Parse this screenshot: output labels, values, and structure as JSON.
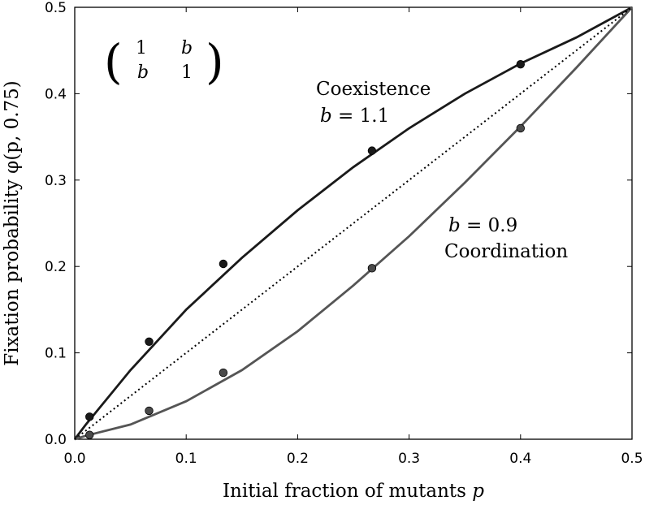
{
  "chart_data": {
    "type": "line",
    "xlabel": "Initial fraction of mutants",
    "xlabel_var": "p",
    "ylabel": "Fixation probability φ(p, 0.75)",
    "xlim": [
      0.0,
      0.5
    ],
    "ylim": [
      0.0,
      0.5
    ],
    "xticks": [
      "0.0",
      "0.1",
      "0.2",
      "0.3",
      "0.4",
      "0.5"
    ],
    "yticks": [
      "0.0",
      "0.1",
      "0.2",
      "0.3",
      "0.4",
      "0.5"
    ],
    "grid": false,
    "series": [
      {
        "style": "solid",
        "color": "#1a1a1a",
        "x": [
          0,
          0.01,
          0.05,
          0.1,
          0.15,
          0.2,
          0.25,
          0.3,
          0.35,
          0.4,
          0.45,
          0.5
        ],
        "y": [
          0,
          0.017,
          0.08,
          0.15,
          0.21,
          0.265,
          0.315,
          0.36,
          0.4,
          0.435,
          0.465,
          0.5
        ]
      },
      {
        "style": "solid",
        "color": "#555555",
        "x": [
          0,
          0.01,
          0.05,
          0.1,
          0.15,
          0.2,
          0.25,
          0.3,
          0.35,
          0.4,
          0.45,
          0.5
        ],
        "y": [
          0,
          0.004,
          0.017,
          0.044,
          0.08,
          0.125,
          0.178,
          0.235,
          0.297,
          0.362,
          0.43,
          0.5
        ]
      },
      {
        "style": "dotted",
        "color": "#000000",
        "x": [
          0,
          0.5
        ],
        "y": [
          0,
          0.5
        ]
      },
      {
        "style": "points",
        "color": "#1a1a1a",
        "x": [
          0.0133,
          0.0667,
          0.1333,
          0.2667,
          0.4
        ],
        "y": [
          0.026,
          0.113,
          0.203,
          0.334,
          0.434
        ]
      },
      {
        "style": "points",
        "color": "#4a4a4a",
        "x": [
          0.0133,
          0.0667,
          0.1333,
          0.2667,
          0.4
        ],
        "y": [
          0.005,
          0.033,
          0.077,
          0.198,
          0.36
        ]
      }
    ],
    "annotations": {
      "coexistence_label": "Coexistence",
      "coexistence_b_var": "b",
      "coexistence_b_value": "= 1.1",
      "coordination_b_var": "b",
      "coordination_b_value": "= 0.9",
      "coordination_label": "Coordination"
    },
    "matrix": {
      "r1c1": "1",
      "r1c2": "b",
      "r2c1": "b",
      "r2c2": "1",
      "open": "(",
      "close": ")"
    }
  }
}
